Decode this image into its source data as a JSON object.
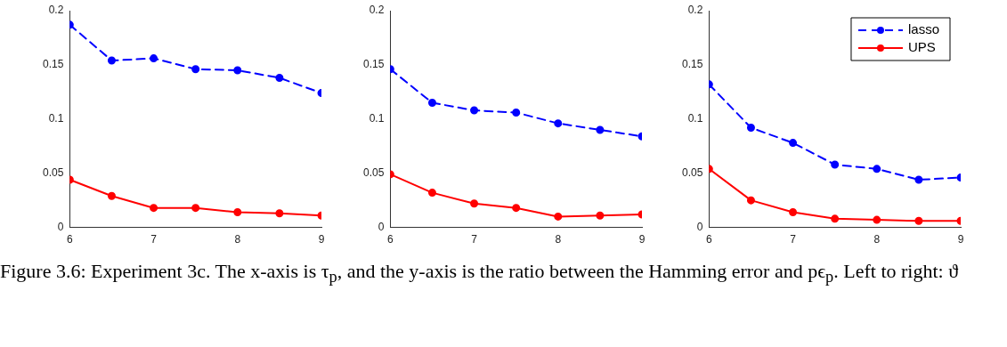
{
  "chart_data": [
    {
      "type": "line",
      "x": [
        6,
        6.5,
        7,
        7.5,
        8,
        8.5,
        9
      ],
      "xlim": [
        6,
        9
      ],
      "xticks": [
        6,
        7,
        8,
        9
      ],
      "ylim": [
        0,
        0.2
      ],
      "yticks": [
        0,
        0.05,
        0.1,
        0.15,
        0.2
      ],
      "grid": false,
      "legend": false,
      "marker": "circle",
      "series": [
        {
          "color": "#0000ff",
          "line_style": "dashed",
          "values": [
            0.187,
            0.154,
            0.156,
            0.146,
            0.145,
            0.138,
            0.124
          ]
        },
        {
          "color": "#ff0000",
          "line_style": "solid",
          "values": [
            0.044,
            0.029,
            0.018,
            0.018,
            0.014,
            0.013,
            0.011
          ]
        }
      ],
      "annotations": [
        "Figure 3.6: Experiment 3c.   The x-axis is τ$_{p}$, and the y-axis is the ratio between the Hamming error and pϵ$_{p}$. Left to right: ϑ"
      ]
    },
    {
      "type": "line",
      "x": [
        6,
        6.5,
        7,
        7.5,
        8,
        8.5,
        9
      ],
      "xlim": [
        6,
        9
      ],
      "xticks": [
        6,
        7,
        8,
        9
      ],
      "ylim": [
        0,
        0.2
      ],
      "yticks": [
        0,
        0.05,
        0.1,
        0.15,
        0.2
      ],
      "grid": false,
      "legend": false,
      "marker": "circle",
      "series": [
        {
          "color": "#0000ff",
          "line_style": "dashed",
          "values": [
            0.146,
            0.115,
            0.108,
            0.106,
            0.096,
            0.09,
            0.084
          ]
        },
        {
          "color": "#ff0000",
          "line_style": "solid",
          "values": [
            0.049,
            0.032,
            0.022,
            0.018,
            0.01,
            0.011,
            0.012
          ]
        }
      ]
    },
    {
      "type": "line",
      "x": [
        6,
        6.5,
        7,
        7.5,
        8,
        8.5,
        9
      ],
      "xlim": [
        6,
        9
      ],
      "xticks": [
        6,
        7,
        8,
        9
      ],
      "ylim": [
        0,
        0.2
      ],
      "yticks": [
        0,
        0.05,
        0.1,
        0.15,
        0.2
      ],
      "grid": false,
      "legend": "top right",
      "marker": "circle",
      "series": [
        {
          "name": "lasso",
          "color": "#0000ff",
          "line_style": "dashed",
          "values": [
            0.132,
            0.092,
            0.078,
            0.058,
            0.054,
            0.044,
            0.046
          ]
        },
        {
          "name": "UPS",
          "color": "#ff0000",
          "line_style": "solid",
          "values": [
            0.054,
            0.025,
            0.014,
            0.008,
            0.007,
            0.006,
            0.006
          ]
        }
      ]
    }
  ]
}
